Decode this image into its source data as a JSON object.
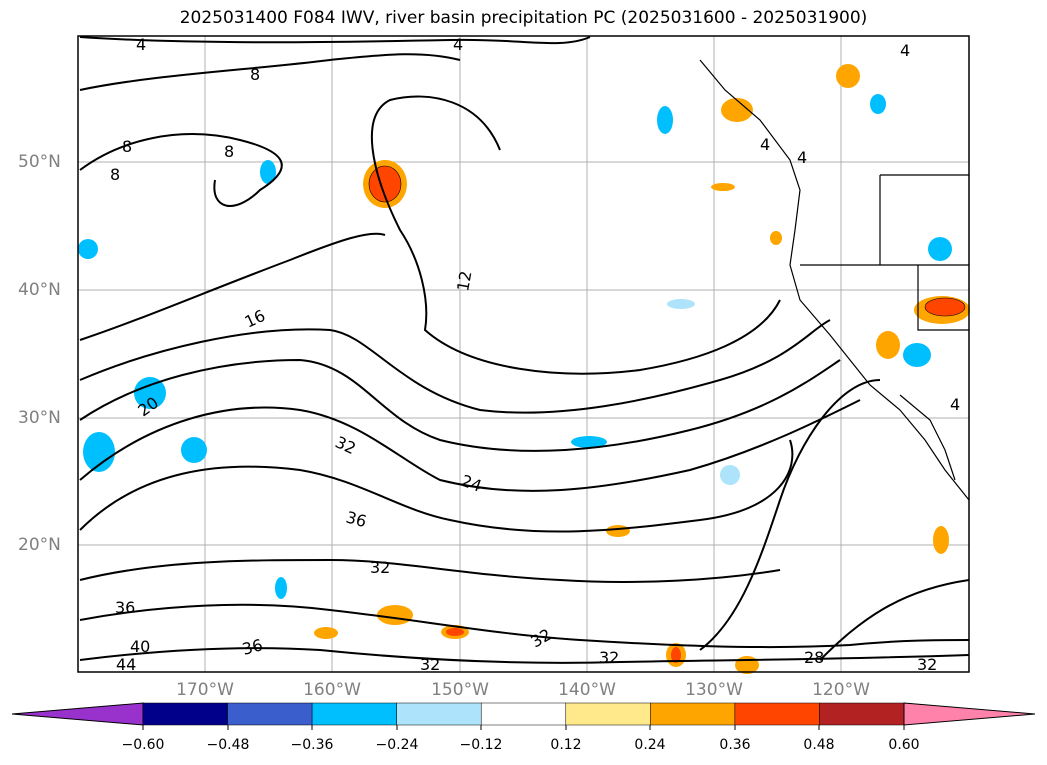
{
  "title": "2025031400 F084 IWV, river basin precipitation PC (2025031600 - 2025031900)",
  "map": {
    "lat_labels": [
      "50°N",
      "40°N",
      "30°N",
      "20°N"
    ],
    "lon_labels": [
      "170°W",
      "160°W",
      "150°W",
      "140°W",
      "130°W",
      "120°W"
    ],
    "contour_labels": [
      "4",
      "4",
      "8",
      "8",
      "8",
      "8",
      "4",
      "4",
      "4",
      "12",
      "16",
      "20",
      "32",
      "24",
      "36",
      "32",
      "36",
      "40",
      "44",
      "36",
      "32",
      "32",
      "32",
      "28",
      "32",
      "4"
    ]
  },
  "colorbar": {
    "ticks": [
      "−0.60",
      "−0.48",
      "−0.36",
      "−0.24",
      "−0.12",
      "0.12",
      "0.24",
      "0.36",
      "0.48",
      "0.60"
    ],
    "colors": [
      "#9932CC",
      "#00008B",
      "#3A5FCD",
      "#00BFFF",
      "#ADE3FB",
      "#FFFFFF",
      "#FFE98A",
      "#FFA500",
      "#FF4500",
      "#B22222",
      "#FF82AB"
    ]
  }
}
